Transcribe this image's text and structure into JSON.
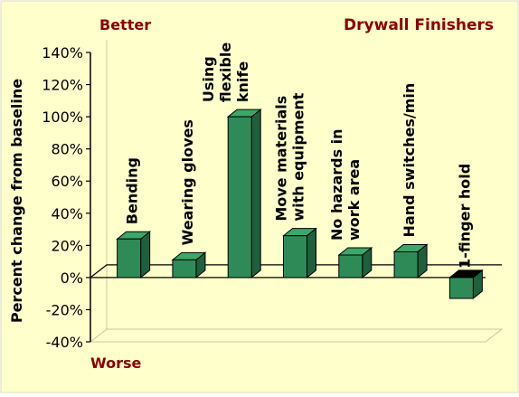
{
  "chart_data": {
    "type": "bar",
    "title": "Drywall Finishers",
    "top_annotation": "Better",
    "bottom_annotation": "Worse",
    "ylabel": "Percent change from baseline",
    "xlabel": "",
    "ylim": [
      -40,
      140
    ],
    "yticks": [
      140,
      120,
      100,
      80,
      60,
      40,
      20,
      0,
      -20,
      -40
    ],
    "ytick_labels": [
      "140%",
      "120%",
      "100%",
      "80%",
      "60%",
      "40%",
      "20%",
      "0%",
      "-20%",
      "-40%"
    ],
    "categories": [
      [
        "Bending"
      ],
      [
        "Wearing gloves"
      ],
      [
        "Using",
        "flexible",
        "knife"
      ],
      [
        "Move materials",
        "with equipment"
      ],
      [
        "No hazards in",
        "work area"
      ],
      [
        "Hand switches/min"
      ],
      [
        "1-finger hold"
      ]
    ],
    "values": [
      24,
      11,
      100,
      26,
      14,
      16,
      -13
    ],
    "grid": false,
    "legend": "none",
    "colors": {
      "background": "#FFFFCC",
      "bar_front": "#2E8B57",
      "bar_side": "#1F5F3B",
      "bar_top": "#3AA868",
      "annotation": "#8B0000",
      "title": "#8B0000",
      "text": "#000000"
    }
  }
}
